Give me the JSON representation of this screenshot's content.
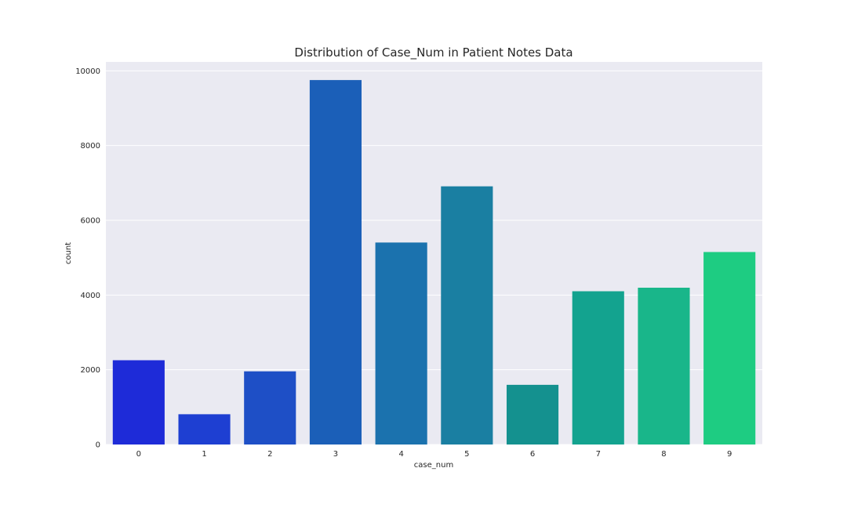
{
  "chart_data": {
    "type": "bar",
    "title": "Distribution of Case_Num in Patient Notes Data",
    "xlabel": "case_num",
    "ylabel": "count",
    "categories": [
      "0",
      "1",
      "2",
      "3",
      "4",
      "5",
      "6",
      "7",
      "8",
      "9"
    ],
    "values": [
      2255,
      810,
      1958,
      9753,
      5405,
      6909,
      1597,
      4101,
      4196,
      5151
    ],
    "ylim": [
      0,
      10238
    ],
    "yticks": [
      "0",
      "2000",
      "4000",
      "6000",
      "8000",
      "10000"
    ],
    "grid": true,
    "legend": "none",
    "style": {
      "plot_background": "#eaeaf2",
      "grid_color": "#ffffff",
      "bar_colors": [
        "#1e2bd8",
        "#1e3fd2",
        "#1e4fc6",
        "#1b5fb8",
        "#1b72ae",
        "#1a7fa2",
        "#14918f",
        "#13a38f",
        "#19b68a",
        "#1ecc82"
      ]
    }
  }
}
